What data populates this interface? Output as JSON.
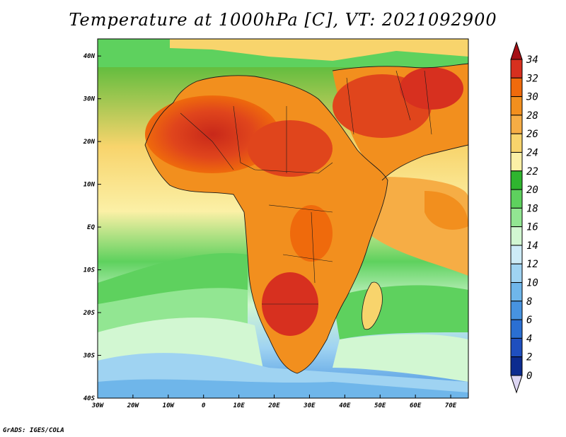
{
  "title": "Temperature at 1000hPa [C], VT: 2021092900",
  "credit": "GrADS: IGES/COLA",
  "map": {
    "lon_ticks": [
      "30W",
      "20W",
      "10W",
      "0",
      "10E",
      "20E",
      "30E",
      "40E",
      "50E",
      "60E",
      "70E"
    ],
    "lat_ticks": [
      "40N",
      "30N",
      "20N",
      "10N",
      "EQ",
      "10S",
      "20S",
      "30S",
      "40S"
    ],
    "lon_range": [
      -30,
      75
    ],
    "lat_range": [
      -40,
      44
    ]
  },
  "colorbar": {
    "labels": [
      "34",
      "32",
      "30",
      "28",
      "26",
      "24",
      "22",
      "20",
      "18",
      "16",
      "14",
      "12",
      "10",
      "8",
      "6",
      "4",
      "2",
      "0"
    ],
    "colors": [
      "#a50f15",
      "#d7301f",
      "#ef6a0c",
      "#f28f1e",
      "#f6ad45",
      "#f8d46c",
      "#fbf0a6",
      "#2fb52f",
      "#5ed15e",
      "#92e692",
      "#d2f7d2",
      "#cdebf7",
      "#9fd3f2",
      "#6fb6ea",
      "#4793e0",
      "#2a6fd3",
      "#1f4fbf",
      "#0c2b8f",
      "#081a66"
    ]
  },
  "colors": {
    "ocean_cool": "#92e692",
    "land_hot": "#d7301f",
    "coast": "#1a1a1a"
  }
}
